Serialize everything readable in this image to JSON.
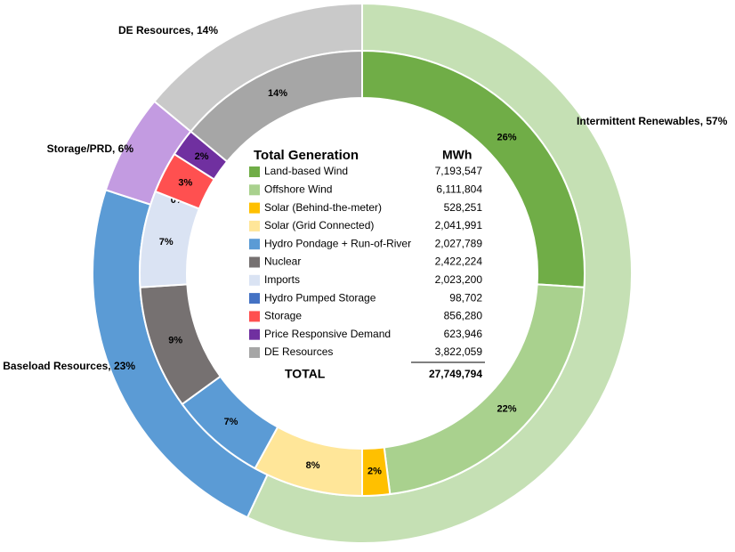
{
  "chart_data": {
    "type": "donut",
    "inner": {
      "categories": [
        "Land-based Wind",
        "Offshore Wind",
        "Solar (Behind-the-meter)",
        "Solar (Grid Connected)",
        "Hydro Pondage + Run-of-River",
        "Nuclear",
        "Imports",
        "Hydro Pumped Storage",
        "Storage",
        "Price Responsive Demand",
        "DE Resources"
      ],
      "values": [
        26,
        22,
        2,
        8,
        7,
        9,
        7,
        0,
        3,
        2,
        14
      ],
      "value_labels": [
        "26%",
        "22%",
        "2%",
        "8%",
        "7%",
        "9%",
        "7%",
        "0%",
        "3%",
        "2%",
        "14%"
      ],
      "colors": [
        "#70ad47",
        "#a9d18e",
        "#ffc000",
        "#ffe699",
        "#5b9bd5",
        "#767171",
        "#dae3f3",
        "#4472c4",
        "#ff5050",
        "#7030a0",
        "#a6a6a6"
      ],
      "mwh": [
        "7,193,547",
        "6,111,804",
        "528,251",
        "2,041,991",
        "2,027,789",
        "2,422,224",
        "2,023,200",
        "98,702",
        "856,280",
        "623,946",
        "3,822,059"
      ]
    },
    "outer": {
      "values": [
        57,
        23,
        6,
        14
      ],
      "value_labels": [
        "Intermittent Renewables, 57%",
        "Baseload Resources, 23%",
        "Storage/PRD, 6%",
        "DE Resources, 14%"
      ],
      "colors": [
        "#c5e0b4",
        "#5b9bd5",
        "#c39be1",
        "#c9c9c9"
      ]
    },
    "legend_title": "Total Generation",
    "legend_unit": "MWh",
    "total_label": "TOTAL",
    "total_value": "27,749,794"
  }
}
